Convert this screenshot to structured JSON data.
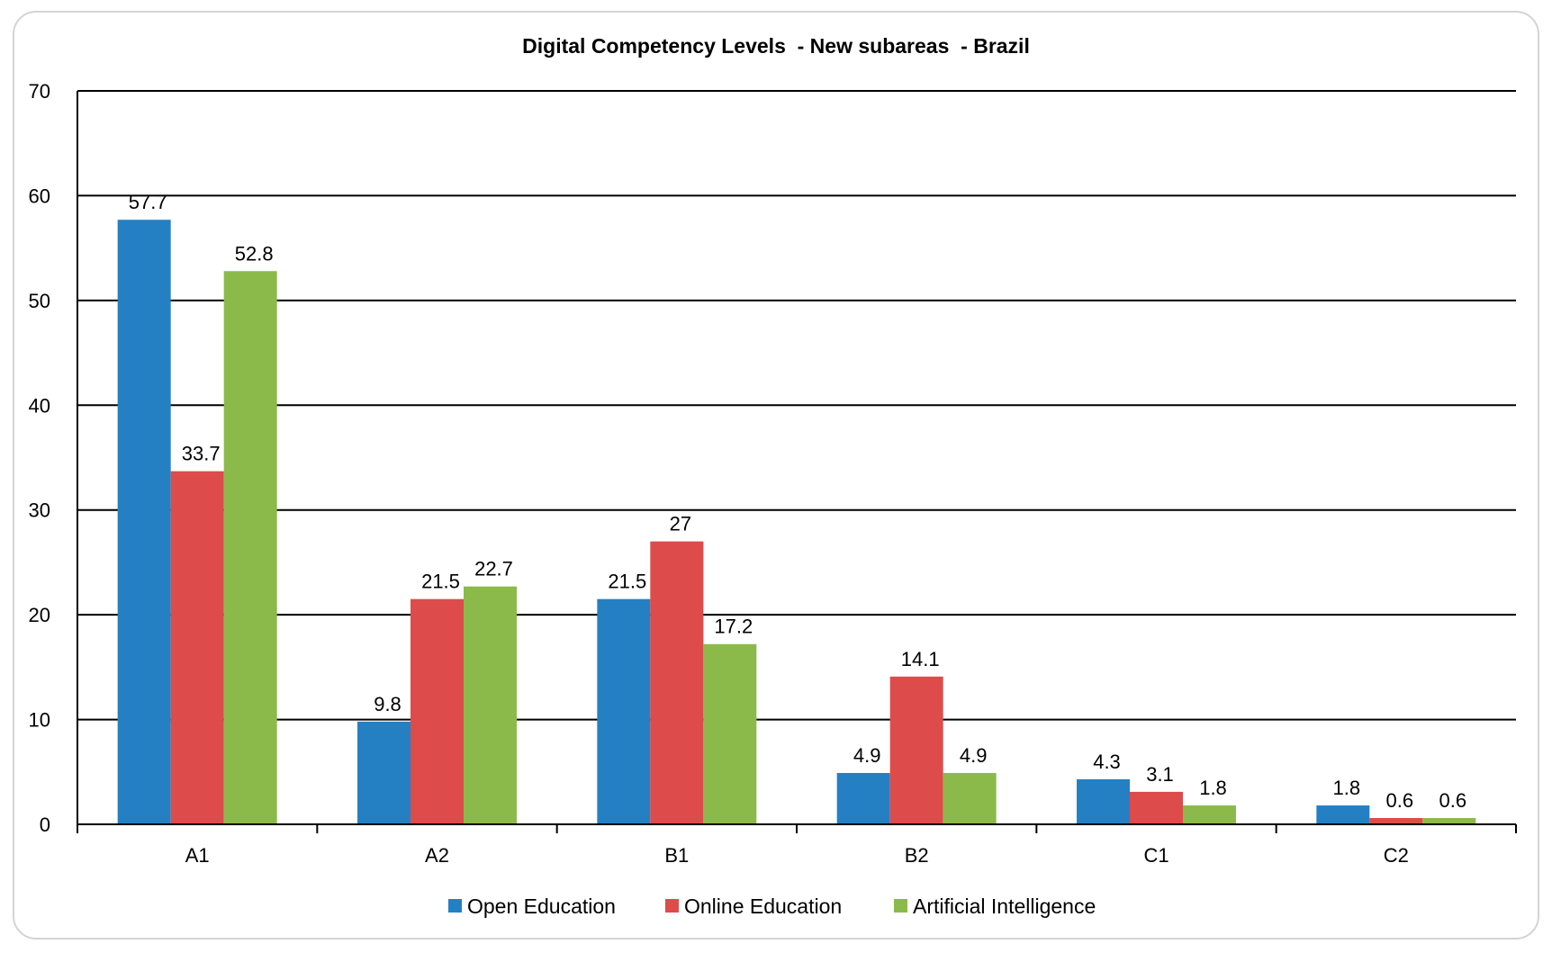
{
  "chart_data": {
    "type": "bar",
    "title": "Digital Competency Levels  - New subareas  - Brazil",
    "xlabel": "",
    "ylabel": "",
    "categories": [
      "A1",
      "A2",
      "B1",
      "B2",
      "C1",
      "C2"
    ],
    "ylim": [
      0,
      70
    ],
    "yticks": [
      0,
      10,
      20,
      30,
      40,
      50,
      60,
      70
    ],
    "grid": true,
    "legend_position": "bottom",
    "data_labels": true,
    "series": [
      {
        "name": "Open Education",
        "color": "#2580C3",
        "values": [
          57.7,
          9.8,
          21.5,
          4.9,
          4.3,
          1.8
        ]
      },
      {
        "name": "Online Education",
        "color": "#DD4B4B",
        "values": [
          33.7,
          21.5,
          27,
          14.1,
          3.1,
          0.6
        ]
      },
      {
        "name": "Artificial Intelligence",
        "color": "#8CBA4A",
        "values": [
          52.8,
          22.7,
          17.2,
          4.9,
          1.8,
          0.6
        ]
      }
    ]
  }
}
